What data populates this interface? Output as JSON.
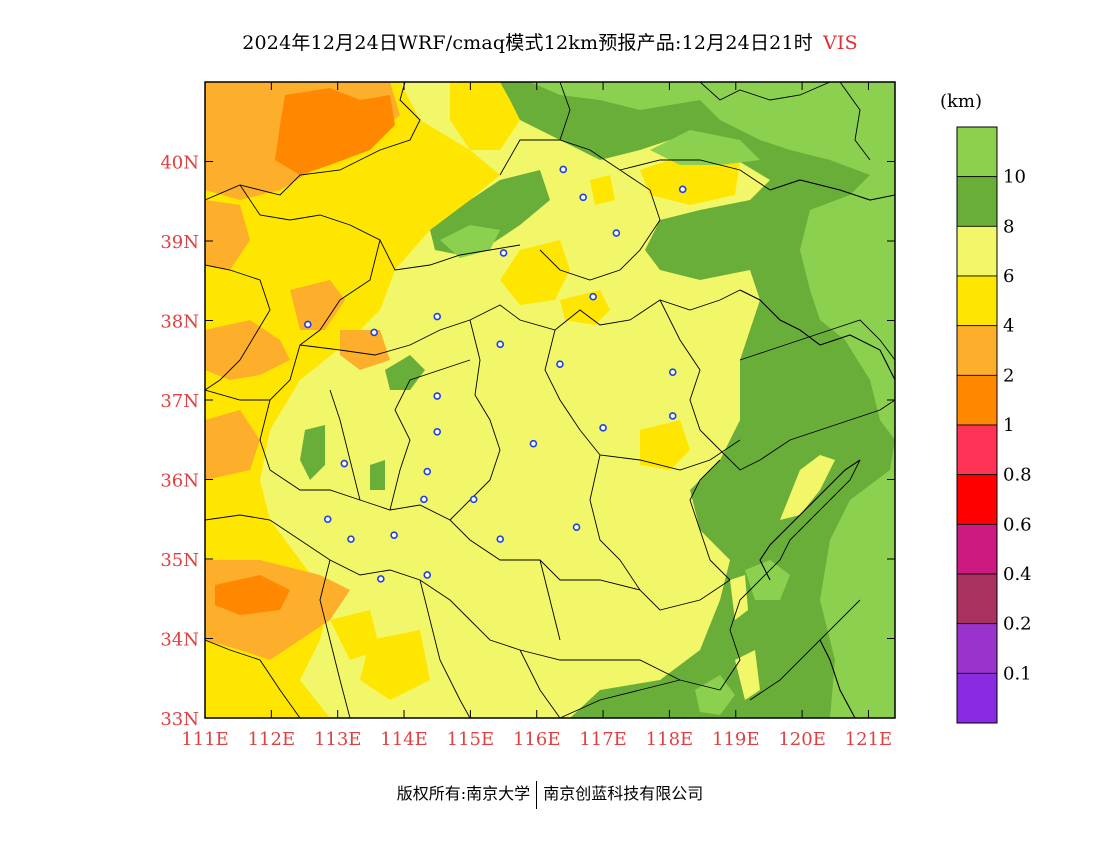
{
  "header": {
    "title": "2024年12月24日WRF/cmaq模式12km预报产品:12月24日21时",
    "variable": "VIS"
  },
  "axes": {
    "x_ticks": [
      "111E",
      "112E",
      "113E",
      "114E",
      "115E",
      "116E",
      "117E",
      "118E",
      "119E",
      "120E",
      "121E"
    ],
    "y_ticks": [
      "33N",
      "34N",
      "35N",
      "36N",
      "37N",
      "38N",
      "39N",
      "40N"
    ],
    "lon_range": [
      111,
      121.4
    ],
    "lat_range": [
      33,
      41
    ]
  },
  "legend": {
    "unit": "(km)",
    "bins": [
      {
        "label": "",
        "color": "#8cd050"
      },
      {
        "label": "10",
        "color": "#6aae3a"
      },
      {
        "label": "8",
        "color": "#f2f76a"
      },
      {
        "label": "6",
        "color": "#ffe600"
      },
      {
        "label": "4",
        "color": "#fdae2b"
      },
      {
        "label": "2",
        "color": "#ff8800"
      },
      {
        "label": "1",
        "color": "#ff3355"
      },
      {
        "label": "0.8",
        "color": "#ff0000"
      },
      {
        "label": "0.6",
        "color": "#cc1a80"
      },
      {
        "label": "0.4",
        "color": "#aa3060"
      },
      {
        "label": "0.2",
        "color": "#9933cc"
      },
      {
        "label": "0.1",
        "color": "#8a2be2"
      }
    ]
  },
  "stations": [
    [
      116.4,
      39.9
    ],
    [
      116.7,
      39.55
    ],
    [
      117.2,
      39.1
    ],
    [
      118.2,
      39.65
    ],
    [
      115.5,
      38.85
    ],
    [
      116.85,
      38.3
    ],
    [
      112.55,
      37.95
    ],
    [
      113.55,
      37.85
    ],
    [
      114.5,
      38.05
    ],
    [
      115.45,
      37.7
    ],
    [
      116.35,
      37.45
    ],
    [
      114.5,
      37.05
    ],
    [
      114.5,
      36.6
    ],
    [
      113.1,
      36.2
    ],
    [
      114.35,
      36.1
    ],
    [
      115.95,
      36.45
    ],
    [
      117.0,
      36.65
    ],
    [
      118.05,
      37.35
    ],
    [
      118.05,
      36.8
    ],
    [
      112.85,
      35.5
    ],
    [
      113.2,
      35.25
    ],
    [
      113.85,
      35.3
    ],
    [
      114.3,
      35.75
    ],
    [
      115.05,
      35.75
    ],
    [
      115.45,
      35.25
    ],
    [
      116.6,
      35.4
    ],
    [
      114.35,
      34.8
    ],
    [
      113.65,
      34.75
    ]
  ],
  "footer": {
    "copyright": "版权所有:南京大学",
    "company": "南京创蓝科技有限公司"
  }
}
